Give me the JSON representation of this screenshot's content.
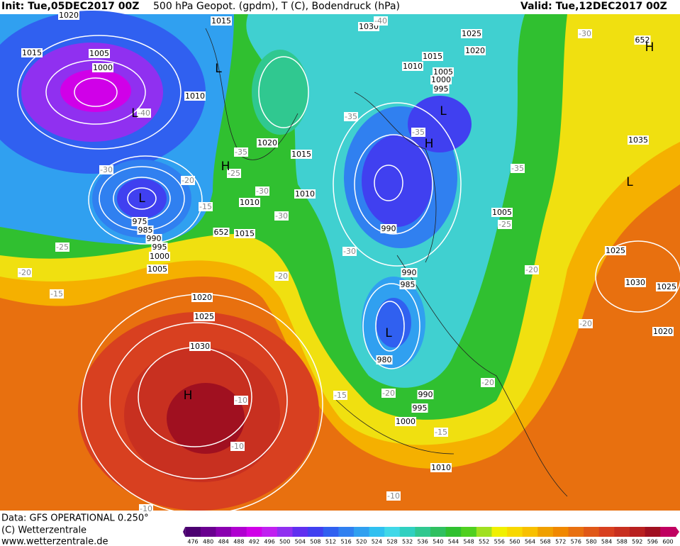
{
  "header": {
    "init": "Init: Tue,05DEC2017 00Z",
    "title": "500 hPa Geopot. (gpdm), T (C), Bodendruck (hPa)",
    "valid": "Valid: Tue,12DEC2017 00Z"
  },
  "footer": {
    "data": "Data: GFS OPERATIONAL 0.250°",
    "copyright": "(C) Wetterzentrale",
    "url": "www.wetterzentrale.de"
  },
  "colorbar": {
    "labels": [
      476,
      480,
      484,
      488,
      492,
      496,
      500,
      504,
      508,
      512,
      516,
      520,
      524,
      528,
      532,
      536,
      540,
      544,
      548,
      552,
      556,
      560,
      564,
      568,
      572,
      576,
      580,
      584,
      588,
      592,
      596,
      600
    ],
    "colors": [
      "#4b0070",
      "#6a0090",
      "#8a00b0",
      "#b000d0",
      "#d000e8",
      "#c020f0",
      "#9030f0",
      "#6030f0",
      "#4040f0",
      "#3060f0",
      "#3080f0",
      "#30a0f0",
      "#30c0f0",
      "#40d8e8",
      "#30d0c0",
      "#30c890",
      "#30c060",
      "#30c030",
      "#50d020",
      "#a0e020",
      "#f0f000",
      "#f8d800",
      "#f8c000",
      "#f0a000",
      "#f08800",
      "#e87010",
      "#e05818",
      "#d84020",
      "#c83020",
      "#b82020",
      "#a01020",
      "#c00060"
    ]
  },
  "map_labels": {
    "isobars": [
      "1020",
      "1015",
      "1015",
      "1005",
      "1000",
      "1010",
      "1030",
      "1025",
      "1020",
      "1015",
      "1010",
      "1005",
      "1000",
      "995",
      "1035",
      "1020",
      "1015",
      "1010",
      "1010",
      "1015",
      "990",
      "975",
      "985",
      "990",
      "995",
      "1000",
      "1005",
      "1005",
      "1025",
      "1030",
      "1025",
      "1020",
      "1025",
      "1030",
      "1020",
      "990",
      "985",
      "980",
      "990",
      "995",
      "1000",
      "1010",
      "652",
      "652"
    ],
    "temperatures": [
      "-40",
      "-30",
      "-40",
      "-35",
      "-35",
      "-35",
      "-30",
      "-20",
      "-25",
      "-35",
      "-15",
      "-30",
      "-30",
      "-25",
      "-25",
      "-30",
      "-20",
      "-20",
      "-20",
      "-15",
      "-20",
      "-20",
      "-15",
      "-20",
      "-10",
      "-10",
      "-15",
      "-10",
      "-10"
    ],
    "centers": [
      "L",
      "L",
      "L",
      "H",
      "H",
      "L",
      "L",
      "H",
      "L",
      "H"
    ]
  }
}
